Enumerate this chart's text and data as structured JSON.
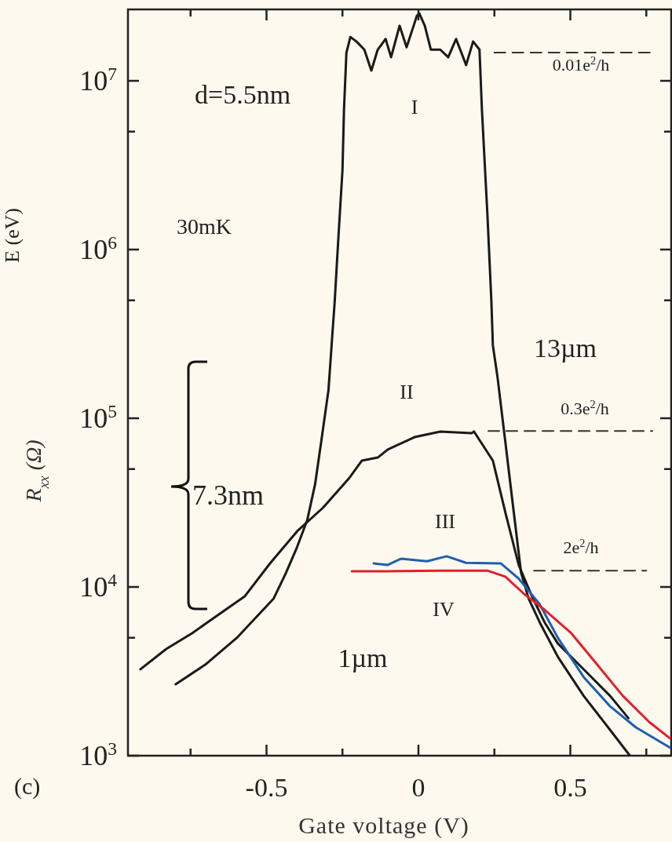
{
  "chart_data": {
    "type": "line",
    "xlabel": "Gate voltage (V)",
    "ylabel": "R$_{xx}$ (Ω)",
    "log": "y",
    "xlim": [
      -0.956,
      0.832
    ],
    "ylim": [
      1000,
      26500000
    ],
    "xticks": [
      {
        "value": -0.75,
        "label": null
      },
      -0.5,
      {
        "value": -0.25,
        "label": null
      },
      0,
      {
        "value": 0.25,
        "label": null
      },
      0.5,
      {
        "value": 0.75,
        "label": null
      }
    ],
    "yticks": [
      {
        "value": 1000,
        "label": "10$^{3}$"
      },
      {
        "value": 5000,
        "label": null
      },
      {
        "value": 10000,
        "label": "10$^{4}$"
      },
      {
        "value": 50000,
        "label": null
      },
      {
        "value": 100000,
        "label": "10$^{5}$"
      },
      {
        "value": 500000,
        "label": null
      },
      {
        "value": 1000000,
        "label": "10$^{6}$"
      },
      {
        "value": 5000000,
        "label": null
      },
      {
        "value": 10000000,
        "label": "10$^{7}$"
      }
    ],
    "series": [
      {
        "color": "#1a1a1a",
        "x": [
          -0.799,
          -0.701,
          -0.598,
          -0.477,
          -0.436,
          -0.399,
          -0.366,
          -0.34,
          -0.32,
          -0.296,
          -0.284,
          -0.276,
          -0.263,
          -0.25,
          -0.245,
          -0.237,
          -0.224,
          -0.204,
          -0.178,
          -0.155,
          -0.134,
          -0.108,
          -0.09,
          -0.062,
          -0.039,
          -0.005,
          0.003,
          0.021,
          0.041,
          0.072,
          0.098,
          0.124,
          0.157,
          0.18,
          0.201,
          0.209,
          0.227,
          0.24,
          0.245,
          0.26,
          0.286,
          0.312,
          0.338,
          0.363,
          0.399,
          0.459,
          0.544,
          0.631,
          0.696
        ],
        "values": [
          2650,
          3470,
          4990,
          8510,
          12100,
          17300,
          24900,
          40700,
          72500,
          147000,
          301000,
          478000,
          1210000,
          2950000,
          6730000,
          14700000,
          18200000,
          17100000,
          15300000,
          11500000,
          15300000,
          17700000,
          13800000,
          21200000,
          15800000,
          24300000,
          25100000,
          21200000,
          15300000,
          15300000,
          13800000,
          17700000,
          12400000,
          17100000,
          15300000,
          6730000,
          1620000,
          499000,
          271000,
          177000,
          72500,
          29500,
          12100,
          8510,
          6180,
          3850,
          2260,
          1420,
          1000
        ]
      },
      {
        "color": "#1a1a1a",
        "x": [
          -0.915,
          -0.83,
          -0.745,
          -0.657,
          -0.572,
          -0.487,
          -0.399,
          -0.314,
          -0.229,
          -0.186,
          -0.134,
          -0.101,
          -0.013,
          0.072,
          0.175,
          0.183,
          0.245,
          0.286,
          0.33,
          0.374,
          0.415,
          0.459,
          0.544,
          0.631,
          0.691
        ],
        "values": [
          3250,
          4290,
          5320,
          6870,
          8790,
          13900,
          21400,
          29500,
          43900,
          56100,
          58500,
          65200,
          77300,
          83400,
          81600,
          83400,
          56100,
          27700,
          13500,
          8790,
          6180,
          4620,
          3250,
          2260,
          1670
        ]
      },
      {
        "color": "#1f5fb0",
        "x": [
          -0.147,
          -0.101,
          -0.057,
          0.028,
          0.093,
          0.157,
          0.271,
          0.33,
          0.399,
          0.459,
          0.544,
          0.631,
          0.716,
          0.827
        ],
        "values": [
          13800,
          13500,
          14700,
          14200,
          15200,
          13900,
          13800,
          11200,
          7900,
          4990,
          2920,
          1960,
          1470,
          1120
        ]
      },
      {
        "color": "#e0202c",
        "x": [
          -0.219,
          -0.101,
          0.072,
          0.227,
          0.286,
          0.348,
          0.415,
          0.503,
          0.588,
          0.673,
          0.76,
          0.827
        ],
        "values": [
          12400,
          12400,
          12500,
          12500,
          11500,
          9080,
          7330,
          5320,
          3470,
          2260,
          1580,
          1270
        ]
      },
      {
        "color": "#333333",
        "line_style": "dashed",
        "x": [
          0.25,
          0.77
        ],
        "values": [
          14700000,
          14700000
        ]
      },
      {
        "color": "#333333",
        "line_style": "dashed",
        "x": [
          0.23,
          0.77
        ],
        "values": [
          84000,
          84000
        ]
      },
      {
        "color": "#333333",
        "line_style": "dashed",
        "x": [
          0.38,
          0.75
        ],
        "values": [
          12500,
          12500
        ]
      }
    ],
    "annotations": [
      "0.01e$^{2}$/h",
      "0.3e$^{2}$/h",
      "2e$^{2}$/h",
      "I",
      "II",
      "III",
      "IV",
      "d=5.5nm",
      "13µm",
      "1µm",
      "30mK",
      "7.3nm",
      "(c)",
      "E (eV)"
    ]
  }
}
